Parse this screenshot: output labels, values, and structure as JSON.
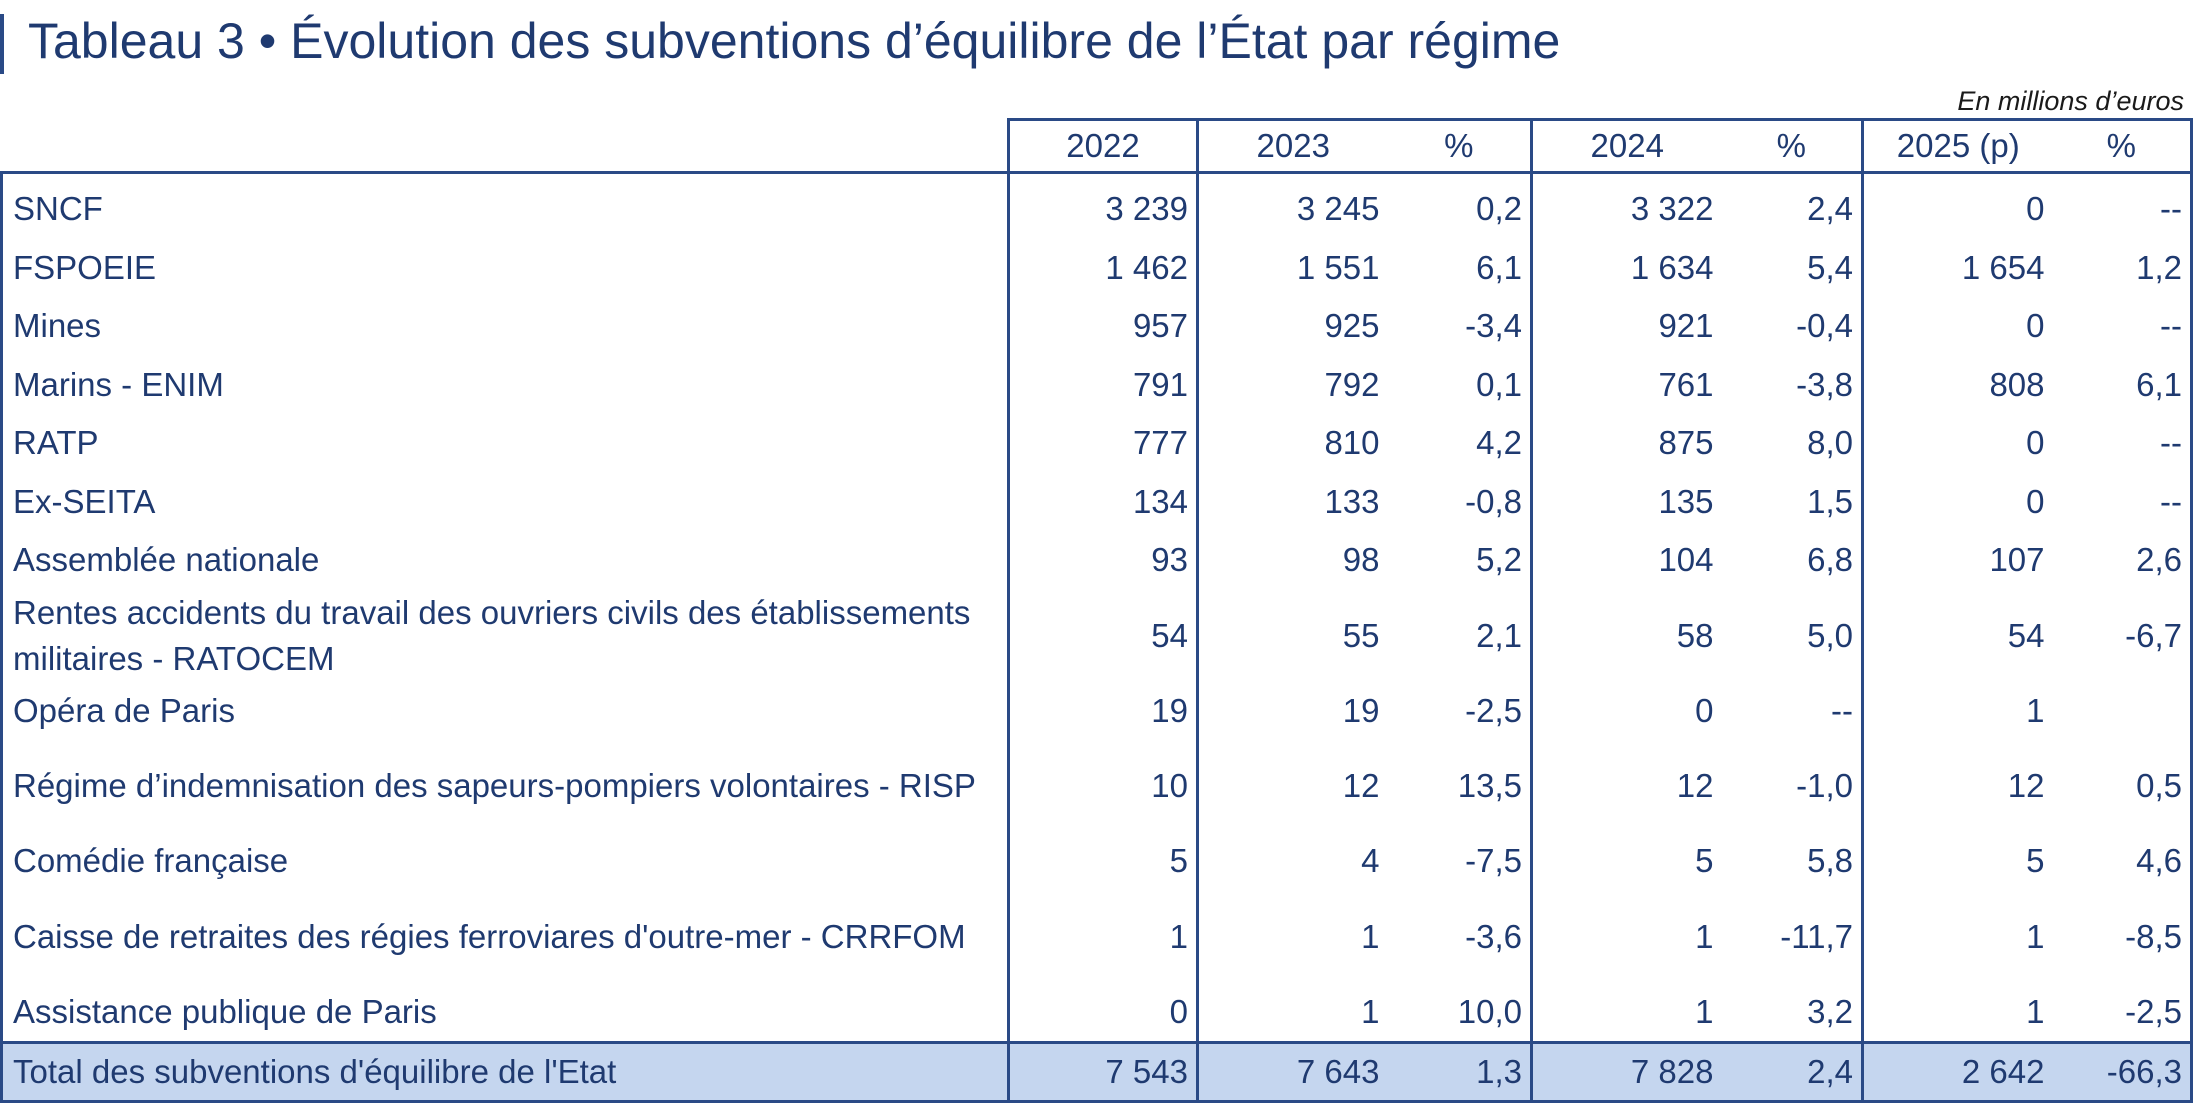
{
  "title": "Tableau 3 • Évolution des subventions d’équilibre de l’État par régime",
  "unit": "En millions d’euros",
  "columns": [
    "2022",
    "2023",
    "%",
    "2024",
    "%",
    "2025 (p)",
    "%"
  ],
  "rows": [
    {
      "label": "SNCF",
      "v2022": "3 239",
      "v2023": "3 245",
      "p2023": "0,2",
      "v2024": "3 322",
      "p2024": "2,4",
      "v2025": "0",
      "p2025": "--"
    },
    {
      "label": "FSPOEIE",
      "v2022": "1 462",
      "v2023": "1 551",
      "p2023": "6,1",
      "v2024": "1 634",
      "p2024": "5,4",
      "v2025": "1 654",
      "p2025": "1,2"
    },
    {
      "label": "Mines",
      "v2022": "957",
      "v2023": "925",
      "p2023": "-3,4",
      "v2024": "921",
      "p2024": "-0,4",
      "v2025": "0",
      "p2025": "--"
    },
    {
      "label": "Marins - ENIM",
      "v2022": "791",
      "v2023": "792",
      "p2023": "0,1",
      "v2024": "761",
      "p2024": "-3,8",
      "v2025": "808",
      "p2025": "6,1"
    },
    {
      "label": "RATP",
      "v2022": "777",
      "v2023": "810",
      "p2023": "4,2",
      "v2024": "875",
      "p2024": "8,0",
      "v2025": "0",
      "p2025": "--"
    },
    {
      "label": "Ex-SEITA",
      "v2022": "134",
      "v2023": "133",
      "p2023": "-0,8",
      "v2024": "135",
      "p2024": "1,5",
      "v2025": "0",
      "p2025": "--"
    },
    {
      "label": "Assemblée nationale",
      "v2022": "93",
      "v2023": "98",
      "p2023": "5,2",
      "v2024": "104",
      "p2024": "6,8",
      "v2025": "107",
      "p2025": "2,6"
    },
    {
      "label": "Rentes accidents du travail des ouvriers civils des établissements militaires - RATOCEM",
      "v2022": "54",
      "v2023": "55",
      "p2023": "2,1",
      "v2024": "58",
      "p2024": "5,0",
      "v2025": "54",
      "p2025": "-6,7"
    },
    {
      "label": "Opéra de Paris",
      "v2022": "19",
      "v2023": "19",
      "p2023": "-2,5",
      "v2024": "0",
      "p2024": "--",
      "v2025": "1",
      "p2025": ""
    },
    {
      "label": "Régime d’indemnisation des sapeurs-pompiers volontaires - RISP",
      "v2022": "10",
      "v2023": "12",
      "p2023": "13,5",
      "v2024": "12",
      "p2024": "-1,0",
      "v2025": "12",
      "p2025": "0,5"
    },
    {
      "label": "Comédie française",
      "v2022": "5",
      "v2023": "4",
      "p2023": "-7,5",
      "v2024": "5",
      "p2024": "5,8",
      "v2025": "5",
      "p2025": "4,6"
    },
    {
      "label": "Caisse de retraites des régies ferroviares d'outre-mer - CRRFOM",
      "v2022": "1",
      "v2023": "1",
      "p2023": "-3,6",
      "v2024": "1",
      "p2024": "-11,7",
      "v2025": "1",
      "p2025": "-8,5"
    },
    {
      "label": "Assistance publique de Paris",
      "v2022": "0",
      "v2023": "1",
      "p2023": "10,0",
      "v2024": "1",
      "p2024": "3,2",
      "v2025": "1",
      "p2025": "-2,5"
    }
  ],
  "total": {
    "label": "Total des subventions d'équilibre de l'Etat",
    "v2022": "7 543",
    "v2023": "7 643",
    "p2023": "1,3",
    "v2024": "7 828",
    "p2024": "2,4",
    "v2025": "2 642",
    "p2025": "-66,3"
  },
  "colors": {
    "text": "#1f3a70",
    "border": "#2a4a86",
    "total_bg": "#c5d6ef"
  }
}
